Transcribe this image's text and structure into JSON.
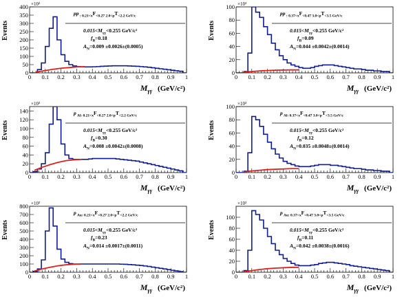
{
  "figure": {
    "style": {
      "hist_color": "#0c1a96",
      "fit_color": "#e0201b"
    }
  },
  "chart_data": [
    {
      "type": "bar",
      "title": "pp : 0.21<x_F<0.27 2.0<p_T<2.2 GeV/c",
      "header_parts": [
        "pp",
        " : 0.21<x",
        "F",
        "<0.27 2.0<p",
        "T",
        "<2.2 GeV/c"
      ],
      "mass_window": [
        "0.015<M",
        "γγ",
        "<0.255 GeV/c²"
      ],
      "fB_parts": [
        "f",
        "B",
        "=0.18"
      ],
      "AN_parts": [
        "A",
        "N",
        "=0.009 ±0.0026±(0.0005)"
      ],
      "ylabel": "Events",
      "exponent": "×10³",
      "xlabel": "M",
      "xlabel_sub": "γγ",
      "xunit": "(GeV/c²)",
      "xlim": [
        0,
        1
      ],
      "ylim": [
        0,
        400
      ],
      "yticks": [
        0,
        50,
        100,
        150,
        200,
        250,
        300,
        350,
        400
      ],
      "xticks": [
        "0",
        "0.1",
        "0.2",
        "0.3",
        "0.4",
        "0.5",
        "0.6",
        "0.7",
        "0.8",
        "0.9",
        "1"
      ],
      "bin_width": 0.025,
      "values": [
        0,
        0,
        20,
        60,
        160,
        270,
        340,
        200,
        110,
        70,
        50,
        42,
        38,
        36,
        36,
        36,
        37,
        38,
        40,
        41,
        42,
        43,
        43,
        43,
        43,
        42,
        41,
        40,
        38,
        36,
        34,
        31,
        28,
        25,
        22,
        19,
        16,
        13,
        10,
        0
      ],
      "fit": {
        "x": [
          0.04,
          0.1,
          0.15,
          0.2,
          0.25,
          0.3,
          0.35
        ],
        "y": [
          5,
          14,
          22,
          28,
          32,
          36,
          38
        ]
      }
    },
    {
      "type": "bar",
      "title": "pp : 0.37<x_F<0.47 3.0<p_T<3.5 GeV/c",
      "header_parts": [
        "pp",
        " : 0.37<x",
        "F",
        "<0.47 3.0<p",
        "T",
        "<3.5 GeV/c"
      ],
      "mass_window": [
        "0.015<M",
        "γγ",
        "<0.255 GeV/c²"
      ],
      "fB_parts": [
        "f",
        "B",
        "=0.09"
      ],
      "AN_parts": [
        "A",
        "N",
        "=0.044 ±0.0042±(0.0014)"
      ],
      "ylabel": "Events",
      "exponent": "×10³",
      "xlabel": "M",
      "xlabel_sub": "γγ",
      "xunit": "(GeV/c²)",
      "xlim": [
        0,
        1
      ],
      "ylim": [
        0,
        100
      ],
      "yticks": [
        0,
        20,
        40,
        60,
        80,
        100
      ],
      "xticks": [
        "0",
        "0.1",
        "0.2",
        "0.3",
        "0.4",
        "0.5",
        "0.6",
        "0.7",
        "0.8",
        "0.9",
        "1"
      ],
      "bin_width": 0.025,
      "values": [
        0,
        0,
        2,
        30,
        100,
        92,
        84,
        70,
        58,
        45,
        35,
        26,
        20,
        15,
        12,
        10,
        8,
        7,
        7,
        8,
        10,
        11,
        12,
        12,
        12,
        11,
        10,
        9,
        8,
        7,
        6,
        6,
        5,
        4,
        4,
        3,
        3,
        2,
        2,
        0
      ],
      "fit": {
        "x": [
          0.05,
          0.1,
          0.15,
          0.2,
          0.25,
          0.3,
          0.35,
          0.4
        ],
        "y": [
          1,
          2,
          3,
          3.5,
          4,
          4.3,
          4.5,
          4.5
        ]
      }
    },
    {
      "type": "bar",
      "title": "p Al: 0.21<x_F<0.27 2.0<p_T<2.2 GeV/c",
      "header_parts": [
        "p",
        " Al: 0.21<x",
        "F",
        "<0.27 2.0<p",
        "T",
        "<2.2 GeV/c"
      ],
      "mass_window": [
        "0.015<M",
        "γγ",
        "<0.255 GeV/c²"
      ],
      "fB_parts": [
        "f",
        "B",
        "=0.30"
      ],
      "AN_parts": [
        "A",
        "N",
        "=0.008 ±0.0042±(0.0008)"
      ],
      "ylabel": "Events",
      "exponent": "×10³",
      "xlabel": "M",
      "xlabel_sub": "γγ",
      "xunit": "(GeV/c²)",
      "xlim": [
        0,
        1
      ],
      "ylim": [
        0,
        150
      ],
      "yticks": [
        0,
        20,
        40,
        60,
        80,
        100,
        120,
        140
      ],
      "xticks": [
        "0",
        "0.1",
        "0.2",
        "0.3",
        "0.4",
        "0.5",
        "0.6",
        "0.7",
        "0.8",
        "0.9",
        "1"
      ],
      "bin_width": 0.025,
      "values": [
        0,
        2,
        8,
        20,
        45,
        110,
        150,
        120,
        65,
        40,
        32,
        30,
        30,
        30,
        30,
        31,
        32,
        32,
        32,
        32,
        32,
        32,
        31,
        30,
        29,
        28,
        27,
        26,
        24,
        22,
        20,
        18,
        16,
        14,
        12,
        10,
        8,
        6,
        4,
        0
      ],
      "fit": {
        "x": [
          0.03,
          0.08,
          0.13,
          0.18,
          0.23,
          0.28,
          0.33
        ],
        "y": [
          5,
          12,
          18,
          23,
          27,
          29,
          30
        ]
      }
    },
    {
      "type": "bar",
      "title": "p Al: 0.37<x_F<0.47 3.0<p_T<3.5 GeV/c",
      "header_parts": [
        "p",
        " Al: 0.37<x",
        "F",
        "<0.47 3.0<p",
        "T",
        "<3.5 GeV/c"
      ],
      "mass_window": [
        "0.015<M",
        "γγ",
        "<0.255 GeV/c²"
      ],
      "fB_parts": [
        "f",
        "B",
        "=0.12"
      ],
      "AN_parts": [
        "A",
        "N",
        "=0.035 ±0.0048±(0.0014)"
      ],
      "ylabel": "Events",
      "exponent": "×10³",
      "xlabel": "M",
      "xlabel_sub": "γγ",
      "xunit": "(GeV/c²)",
      "xlim": [
        0,
        1
      ],
      "ylim": [
        0,
        100
      ],
      "yticks": [
        0,
        20,
        40,
        60,
        80,
        100
      ],
      "xticks": [
        "0",
        "0.1",
        "0.2",
        "0.3",
        "0.4",
        "0.5",
        "0.6",
        "0.7",
        "0.8",
        "0.9",
        "1"
      ],
      "bin_width": 0.025,
      "values": [
        0,
        0,
        2,
        30,
        85,
        80,
        70,
        58,
        46,
        36,
        28,
        22,
        17,
        14,
        12,
        10,
        9,
        9,
        9,
        10,
        11,
        12,
        12,
        12,
        11,
        11,
        10,
        9,
        8,
        7,
        6,
        6,
        5,
        4,
        4,
        3,
        3,
        2,
        2,
        0
      ],
      "fit": {
        "x": [
          0.05,
          0.1,
          0.15,
          0.2,
          0.25,
          0.3,
          0.35,
          0.4
        ],
        "y": [
          1,
          2.5,
          3.5,
          4.5,
          5,
          5.5,
          6,
          6
        ]
      }
    },
    {
      "type": "bar",
      "title": "p Au: 0.21<x_F<0.27 2.0<p_T<2.2 GeV/c",
      "header_parts": [
        "p",
        " Au: 0.21<x",
        "F",
        "<0.27 2.0<p",
        "T",
        "<2.2 GeV/c"
      ],
      "mass_window": [
        "0.015<M",
        "γγ",
        "<0.255 GeV/c²"
      ],
      "fB_parts": [
        "f",
        "B",
        "=0.23"
      ],
      "AN_parts": [
        "A",
        "N",
        "=0.014 ±0.0017±(0.0011)"
      ],
      "ylabel": "Events",
      "exponent": "×10³",
      "xlabel": "M",
      "xlabel_sub": "γγ",
      "xunit": "(GeV/c²)",
      "xlim": [
        0,
        1
      ],
      "ylim": [
        0,
        800
      ],
      "yticks": [
        0,
        100,
        200,
        300,
        400,
        500,
        600,
        700,
        800
      ],
      "xticks": [
        "0",
        "0.1",
        "0.2",
        "0.3",
        "0.4",
        "0.5",
        "0.6",
        "0.7",
        "0.8",
        "0.9",
        "1"
      ],
      "bin_width": 0.025,
      "values": [
        0,
        10,
        40,
        150,
        500,
        780,
        560,
        280,
        160,
        120,
        105,
        100,
        100,
        100,
        100,
        100,
        100,
        100,
        100,
        100,
        100,
        100,
        100,
        98,
        96,
        93,
        90,
        86,
        82,
        76,
        70,
        62,
        55,
        47,
        40,
        32,
        24,
        16,
        8,
        0
      ],
      "fit": {
        "x": [
          0.03,
          0.08,
          0.13,
          0.18,
          0.23,
          0.28,
          0.33
        ],
        "y": [
          15,
          40,
          60,
          78,
          90,
          97,
          100
        ]
      }
    },
    {
      "type": "bar",
      "title": "p Au: 0.37<x_F<0.47 3.0<p_T<3.5 GeV/c",
      "header_parts": [
        "p",
        " Au: 0.37<x",
        "F",
        "<0.47 3.0<p",
        "T",
        "<3.5 GeV/c"
      ],
      "mass_window": [
        "0.015<M",
        "γγ",
        "<0.255 GeV/c²"
      ],
      "fB_parts": [
        "f",
        "B",
        "=0.11"
      ],
      "AN_parts": [
        "A",
        "N",
        "=0.042 ±0.0038±(0.0016)"
      ],
      "ylabel": "Events",
      "exponent": "×10³",
      "xlabel": "M",
      "xlabel_sub": "γγ",
      "xunit": "(GeV/c²)",
      "xlim": [
        0,
        1
      ],
      "ylim": [
        0,
        120
      ],
      "yticks": [
        0,
        20,
        40,
        60,
        80,
        100
      ],
      "xticks": [
        "0",
        "0.1",
        "0.2",
        "0.3",
        "0.4",
        "0.5",
        "0.6",
        "0.7",
        "0.8",
        "0.9",
        "1"
      ],
      "bin_width": 0.025,
      "values": [
        0,
        0,
        3,
        40,
        112,
        105,
        95,
        80,
        65,
        52,
        40,
        32,
        25,
        20,
        16,
        13,
        12,
        12,
        12,
        13,
        14,
        16,
        17,
        18,
        18,
        17,
        16,
        15,
        14,
        12,
        11,
        10,
        9,
        8,
        7,
        6,
        5,
        4,
        3,
        0
      ],
      "fit": {
        "x": [
          0.05,
          0.1,
          0.15,
          0.2,
          0.25,
          0.3,
          0.35,
          0.4
        ],
        "y": [
          1,
          3,
          5,
          6.5,
          7.5,
          8.2,
          8.8,
          9
        ]
      }
    }
  ]
}
